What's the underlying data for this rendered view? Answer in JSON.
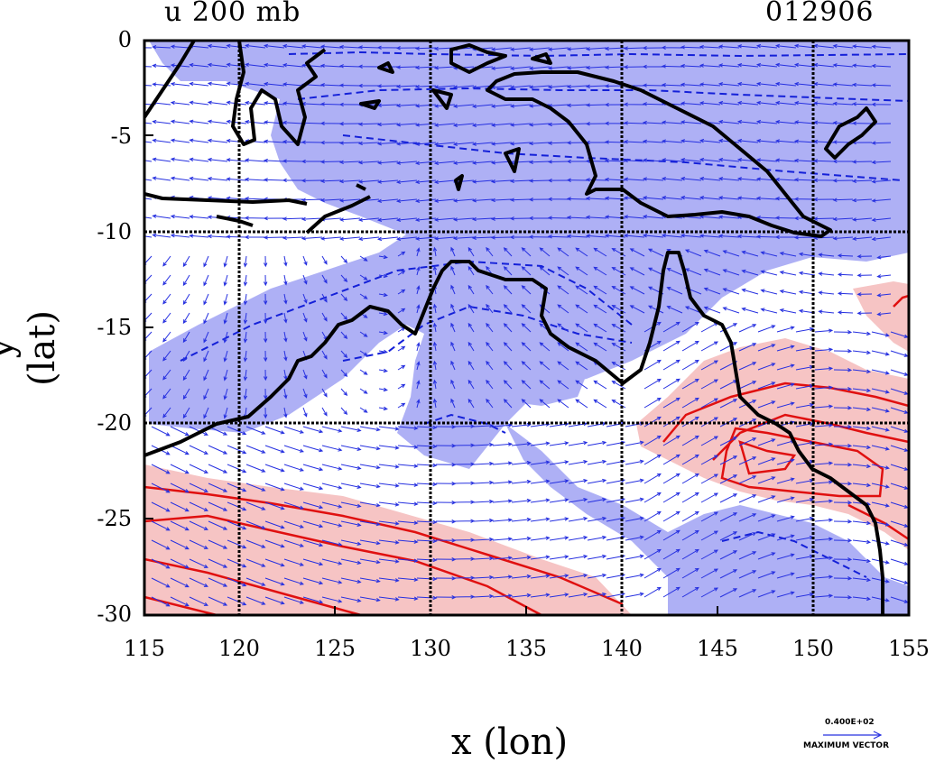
{
  "title": "u 200 mb",
  "date_code": "012906",
  "xlabel": "x (lon)",
  "ylabel": "y (lat)",
  "legend": {
    "value": "0.400E+02",
    "label": "MAXIMUM VECTOR"
  },
  "colors": {
    "negative_fill": "#aeb0f5",
    "positive_fill": "#f6c4c4",
    "negative_contour": "#1420d8",
    "positive_contour": "#e01010",
    "coast": "#000000",
    "vector": "#2630e0"
  },
  "chart_data": {
    "type": "map",
    "variable": "u wind, 200 mb, with wind vectors",
    "xlim": [
      115,
      155
    ],
    "ylim": [
      -30,
      0
    ],
    "x_ticks": [
      "115",
      "120",
      "125",
      "130",
      "135",
      "140",
      "145",
      "150",
      "155"
    ],
    "y_ticks": [
      "0",
      "-5",
      "-10",
      "-15",
      "-20",
      "-25",
      "-30"
    ],
    "grid": true,
    "grid_lon": [
      120,
      130,
      140,
      150
    ],
    "grid_lat": [
      -10,
      -20
    ],
    "shading": [
      "negative u (easterly) blue",
      "positive u (westerly) red"
    ]
  }
}
